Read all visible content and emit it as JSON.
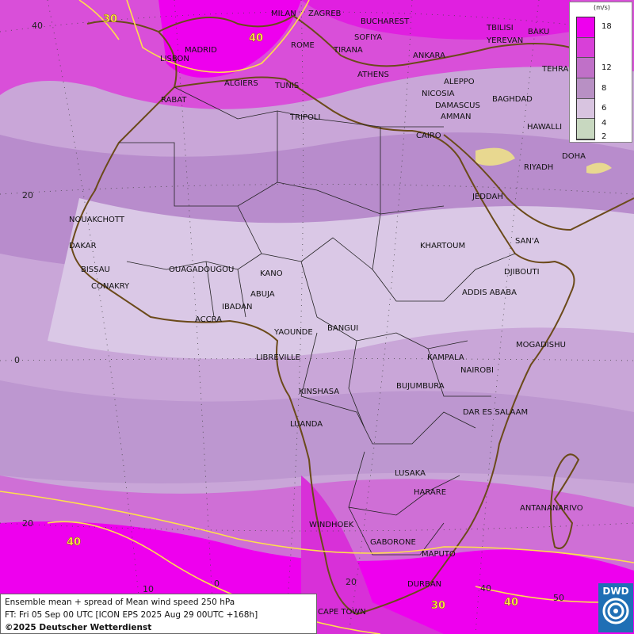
{
  "legend": {
    "unit": "(m/s)",
    "ticks": [
      "18",
      "12",
      "8",
      "6",
      "4",
      "2"
    ],
    "colors": [
      "#ee00ee",
      "#d840d8",
      "#c070c8",
      "#b890c4",
      "#d8c4e0",
      "#c8d8c0"
    ]
  },
  "caption": {
    "line1": "Ensemble mean + spread of Mean wind speed 250 hPa",
    "line2": "FT: Fri 05 Sep 00 UTC [ICON EPS 2025 Aug 29 00UTC +168h]",
    "line3": "©2025 Deutscher Wetterdienst"
  },
  "logo": {
    "text": "DWD"
  },
  "lat_labels": [
    "40",
    "20",
    "0",
    "20"
  ],
  "lon_labels": [
    "0",
    "10",
    "20",
    "40",
    "50"
  ],
  "contour_labels": [
    "30",
    "40",
    "40",
    "30",
    "40"
  ],
  "cities": [
    "MILAN",
    "ZAGREB",
    "BUCHAREST",
    "TBILISI",
    "BAKU",
    "YEREVAN",
    "MADRID",
    "ROME",
    "SOFIYA",
    "TIRANA",
    "LISBON",
    "ANKARA",
    "TEHRA",
    "ALGIERS",
    "TUNIS",
    "ATHENS",
    "ALEPPO",
    "RABAT",
    "NICOSIA",
    "BAGHDAD",
    "DAMASCUS",
    "AMMAN",
    "TRIPOLI",
    "HAWALLI",
    "CAIRO",
    "DOHA",
    "RIYADH",
    "JEDDAH",
    "NOUAKCHOTT",
    "SAN'A",
    "DAKAR",
    "KHARTOUM",
    "BISSAU",
    "OUAGADOUGOU",
    "KANO",
    "DJIBOUTI",
    "CONAKRY",
    "ABUJA",
    "ADDIS ABABA",
    "IBADAN",
    "ACCRA",
    "YAOUNDE",
    "BANGUI",
    "MOGADISHU",
    "LIBREVILLE",
    "KAMPALA",
    "NAIROBI",
    "KINSHASA",
    "BUJUMBURA",
    "DAR ES SALAAM",
    "LUANDA",
    "LUSAKA",
    "HARARE",
    "ANTANANARIVO",
    "WINDHOEK",
    "GABORONE",
    "MAPUTO",
    "DURBAN",
    "CAPE TOWN"
  ]
}
